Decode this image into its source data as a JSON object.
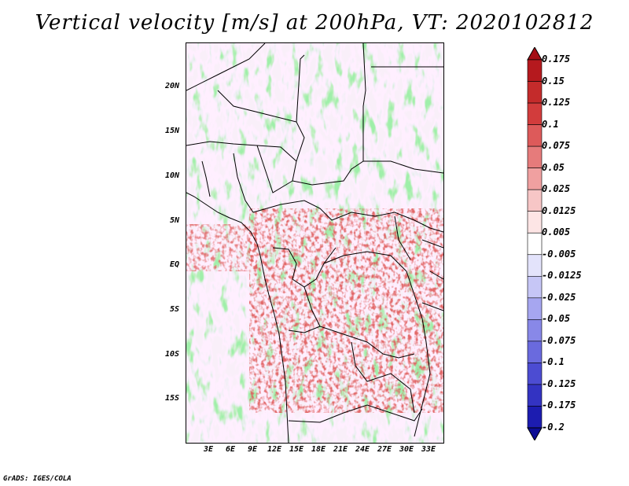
{
  "title": "Vertical velocity [m/s] at 200hPa, VT: 2020102812",
  "footer": "GrADS: IGES/COLA",
  "map": {
    "lat_ticks": [
      "20N",
      "15N",
      "10N",
      "5N",
      "EQ",
      "5S",
      "10S",
      "15S"
    ],
    "lon_ticks": [
      "3E",
      "6E",
      "9E",
      "12E",
      "15E",
      "18E",
      "21E",
      "24E",
      "27E",
      "30E",
      "33E"
    ],
    "field": "Vertical velocity",
    "units": "m/s",
    "level": "200hPa",
    "valid_time": "2020102812"
  },
  "colorbar": {
    "labels": [
      "0.175",
      "0.15",
      "0.125",
      "0.1",
      "0.075",
      "0.05",
      "0.025",
      "0.0125",
      "0.005",
      "-0.005",
      "-0.0125",
      "-0.025",
      "-0.05",
      "-0.075",
      "-0.1",
      "-0.125",
      "-0.175",
      "-0.2"
    ],
    "colors": [
      "#a50f15",
      "#b5191e",
      "#c42b2b",
      "#d23c3c",
      "#dd5a5a",
      "#e67b7b",
      "#f0a0a0",
      "#f7c6c6",
      "#fde5e5",
      "#ffffff",
      "#e3e3fb",
      "#c6c6f6",
      "#a6a6f0",
      "#8888e8",
      "#6a6ade",
      "#4c4cd2",
      "#3333c2",
      "#1c1cb0",
      "#0d0d95"
    ]
  }
}
